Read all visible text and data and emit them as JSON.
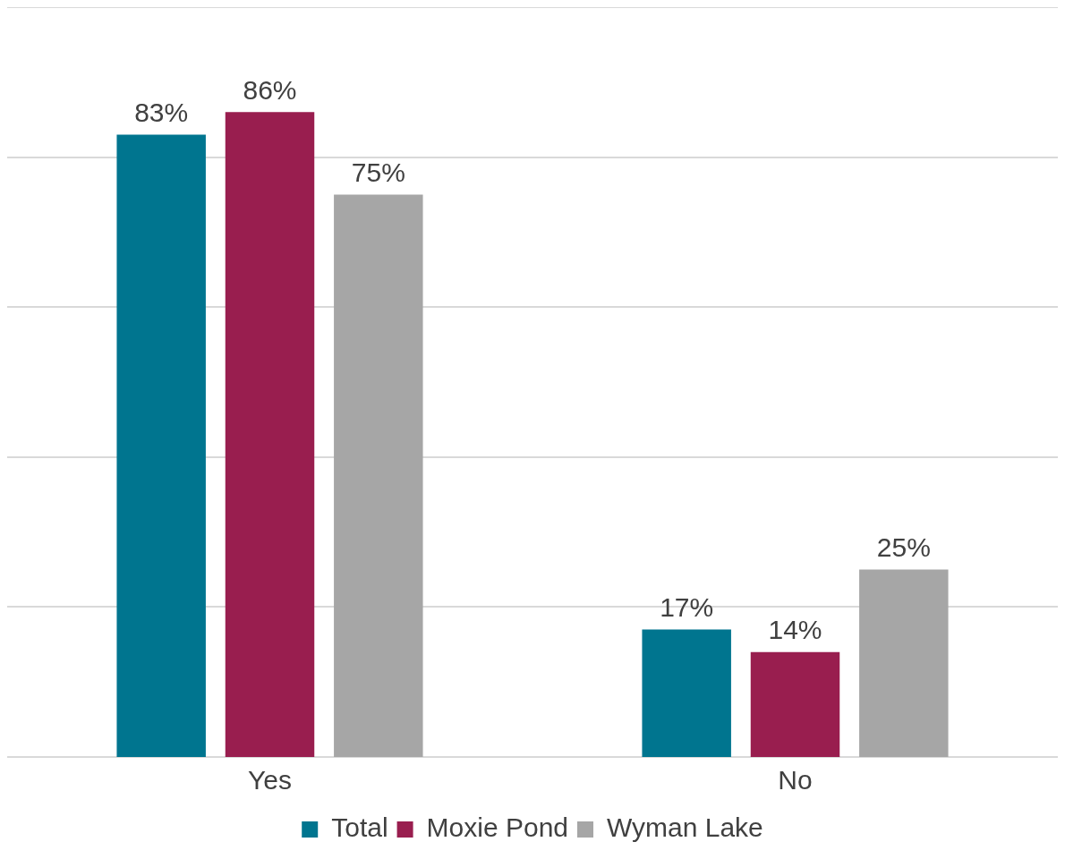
{
  "chart_data": {
    "type": "bar",
    "categories": [
      "Yes",
      "No"
    ],
    "series": [
      {
        "name": "Total",
        "color": "#00758f",
        "values": [
          83,
          17
        ],
        "value_labels": [
          "83%",
          "17%"
        ]
      },
      {
        "name": "Moxie Pond",
        "color": "#991e4f",
        "values": [
          86,
          14
        ],
        "value_labels": [
          "86%",
          "14%"
        ]
      },
      {
        "name": "Wyman Lake",
        "color": "#a6a6a6",
        "values": [
          75,
          25
        ],
        "value_labels": [
          "75%",
          "25%"
        ]
      }
    ],
    "ylim": [
      0,
      100
    ],
    "yticks": [
      {
        "value": 20,
        "label": null
      },
      {
        "value": 40,
        "label": null
      },
      {
        "value": 60,
        "label": null
      },
      {
        "value": 80,
        "label": null
      },
      {
        "value": 100,
        "label": null
      }
    ],
    "tick_labels": "x",
    "grid": "y",
    "legend": "bottom"
  }
}
